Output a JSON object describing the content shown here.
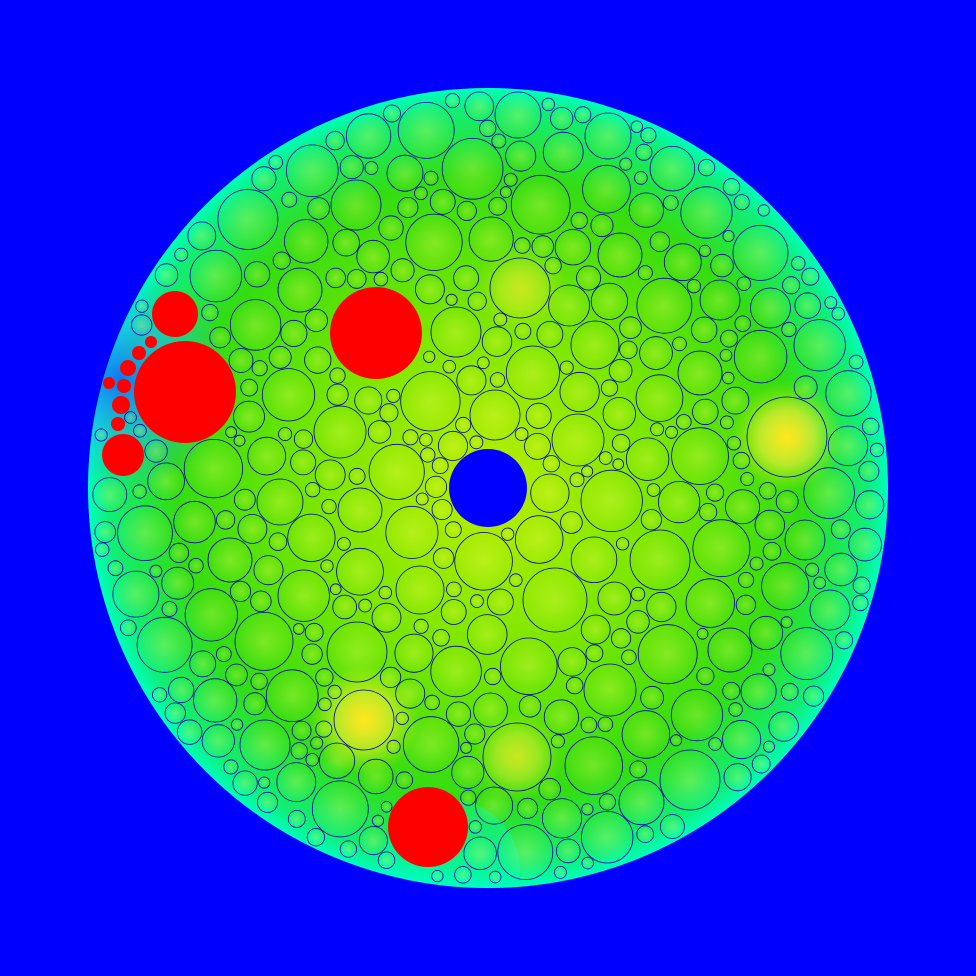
{
  "colors": {
    "background": "#0000ff",
    "disc_fill_center": "#aaee00",
    "disc_fill_mid": "#44dd00",
    "disc_fill_edge": "#00ffaa",
    "cold_edge": "#2299ff",
    "hotspot": "#ffee00",
    "circle_outline": "#0000aa",
    "highlighted_circle": "#ff0000",
    "center_hole": "#0000ff"
  },
  "highlighted_circle_count": 11
}
